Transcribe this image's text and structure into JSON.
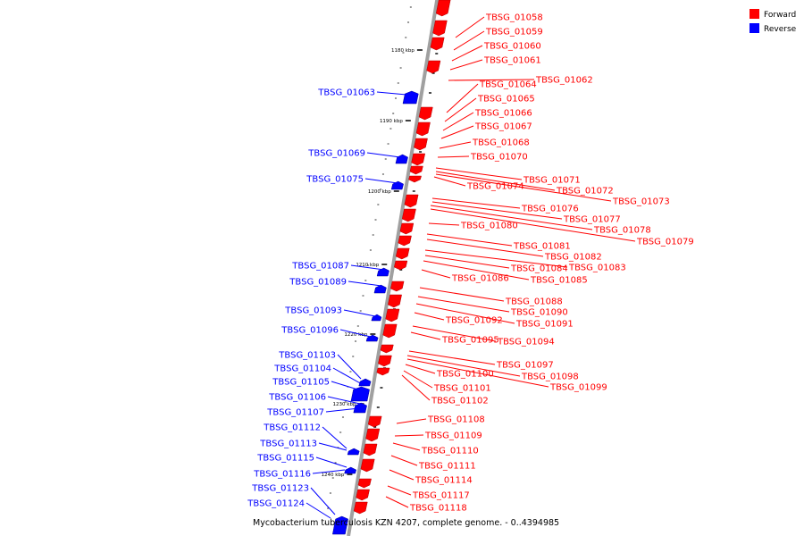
{
  "colors": {
    "forward": "#ff0000",
    "reverse": "#0000ff",
    "backbone": "#a0a0a0"
  },
  "legend": [
    {
      "label": "Forward",
      "color": "#ff0000"
    },
    {
      "label": "Reverse",
      "color": "#0000ff"
    }
  ],
  "caption": "Mycobacterium tuberculosis KZN 4207, complete genome. - 0..4394985",
  "scale_ticks": [
    "1180 kbp",
    "1190 kbp",
    "1200 kbp",
    "1210 kbp",
    "1220 kbp",
    "1230 kbp",
    "1240 kbp"
  ],
  "forward_genes": [
    "TBSG_01058",
    "TBSG_01059",
    "TBSG_01060",
    "TBSG_01061",
    "TBSG_01062",
    "TBSG_01064",
    "TBSG_01065",
    "TBSG_01066",
    "TBSG_01067",
    "TBSG_01068",
    "TBSG_01070",
    "TBSG_01071",
    "TBSG_01072",
    "TBSG_01073",
    "TBSG_01074",
    "TBSG_01076",
    "TBSG_01077",
    "TBSG_01078",
    "TBSG_01079",
    "TBSG_01080",
    "TBSG_01081",
    "TBSG_01082",
    "TBSG_01083",
    "TBSG_01084",
    "TBSG_01085",
    "TBSG_01086",
    "TBSG_01088",
    "TBSG_01090",
    "TBSG_01091",
    "TBSG_01092",
    "TBSG_01094",
    "TBSG_01095",
    "TBSG_01097",
    "TBSG_01098",
    "TBSG_01099",
    "TBSG_01100",
    "TBSG_01101",
    "TBSG_01102",
    "TBSG_01108",
    "TBSG_01109",
    "TBSG_01110",
    "TBSG_01111",
    "TBSG_01114",
    "TBSG_01117",
    "TBSG_01118"
  ],
  "reverse_genes": [
    "TBSG_01063",
    "TBSG_01069",
    "TBSG_01075",
    "TBSG_01087",
    "TBSG_01089",
    "TBSG_01093",
    "TBSG_01096",
    "TBSG_01103",
    "TBSG_01104",
    "TBSG_01105",
    "TBSG_01106",
    "TBSG_01107",
    "TBSG_01112",
    "TBSG_01113",
    "TBSG_01115",
    "TBSG_01116",
    "TBSG_01123",
    "TBSG_01124"
  ]
}
